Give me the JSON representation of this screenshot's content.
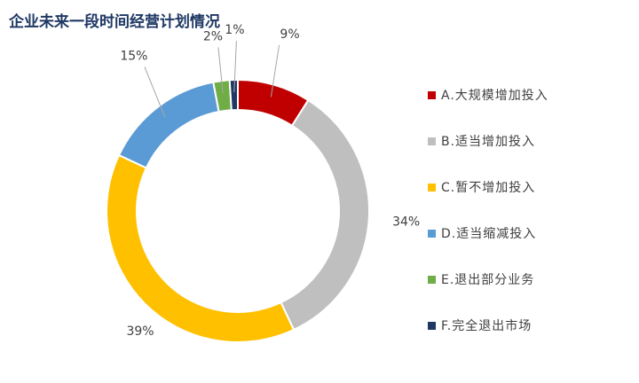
{
  "chart_data": {
    "type": "pie",
    "title": "企业未来一段时间经营计划情况",
    "legend_position": "right",
    "donut": true,
    "slices": [
      {
        "label": "A.大规模增加投入",
        "value": 9,
        "display": "9%",
        "color": "#c00000"
      },
      {
        "label": "B.适当增加投入",
        "value": 34,
        "display": "34%",
        "color": "#bfbfbf"
      },
      {
        "label": "C.暂不增加投入",
        "value": 39,
        "display": "39%",
        "color": "#ffc000"
      },
      {
        "label": "D.适当缩减投入",
        "value": 15,
        "display": "15%",
        "color": "#5b9bd5"
      },
      {
        "label": "E.退出部分业务",
        "value": 2,
        "display": "2%",
        "color": "#70ad47"
      },
      {
        "label": "F.完全退出市场",
        "value": 1,
        "display": "1%",
        "color": "#1f3864"
      }
    ]
  }
}
